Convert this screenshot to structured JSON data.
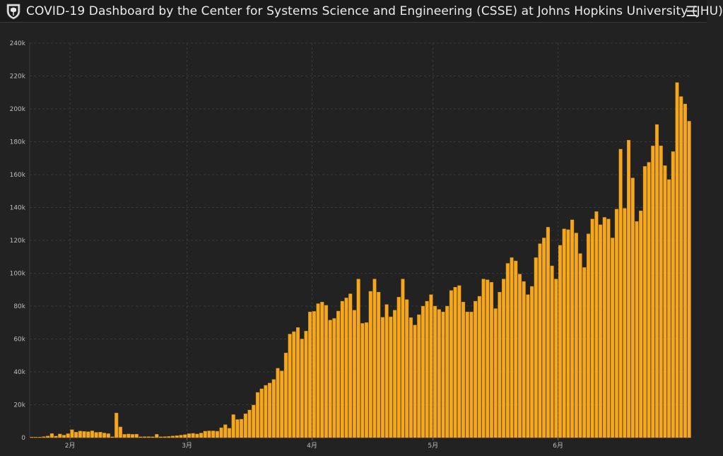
{
  "header": {
    "title": "COVID-19 Dashboard by the Center for Systems Science and Engineering (CSSE) at Johns Hopkins University (JHU)",
    "logo_icon": "jhu-shield-icon",
    "menu_icon": "hamburger-menu-icon"
  },
  "colors": {
    "bar": "#f6a81c",
    "bar_stroke": "#d08a10",
    "background": "#222222",
    "grid": "#3b3b3b",
    "axis_text": "#bdbdbd"
  },
  "chart_data": {
    "type": "bar",
    "ylim": [
      0,
      240000
    ],
    "y_ticks": [
      {
        "value": 0,
        "label": "0"
      },
      {
        "value": 20000,
        "label": "20k"
      },
      {
        "value": 40000,
        "label": "40k"
      },
      {
        "value": 60000,
        "label": "60k"
      },
      {
        "value": 80000,
        "label": "80k"
      },
      {
        "value": 100000,
        "label": "100k"
      },
      {
        "value": 120000,
        "label": "120k"
      },
      {
        "value": 140000,
        "label": "140k"
      },
      {
        "value": 160000,
        "label": "160k"
      },
      {
        "value": 180000,
        "label": "180k"
      },
      {
        "value": 200000,
        "label": "200k"
      },
      {
        "value": 220000,
        "label": "220k"
      },
      {
        "value": 240000,
        "label": "240k"
      }
    ],
    "x_ticks": [
      {
        "index": 10,
        "label": "2月"
      },
      {
        "index": 39,
        "label": "3月"
      },
      {
        "index": 70,
        "label": "4月"
      },
      {
        "index": 100,
        "label": "5月"
      },
      {
        "index": 131,
        "label": "6月"
      }
    ],
    "values": [
      100,
      300,
      300,
      600,
      1000,
      2500,
      900,
      2200,
      1500,
      2400,
      4800,
      3300,
      4000,
      3800,
      3600,
      4100,
      3200,
      3300,
      2800,
      2400,
      500,
      15000,
      6500,
      2000,
      2200,
      2000,
      2100,
      500,
      600,
      600,
      500,
      2000,
      500,
      600,
      700,
      1000,
      1200,
      1500,
      1800,
      2400,
      2600,
      2200,
      2800,
      3900,
      4100,
      4100,
      3900,
      6000,
      7900,
      5700,
      14000,
      11000,
      11200,
      14500,
      16800,
      19800,
      27500,
      29700,
      31800,
      33200,
      35400,
      42200,
      40600,
      51500,
      63000,
      64500,
      67000,
      60000,
      64800,
      76500,
      76800,
      81500,
      82500,
      80500,
      71500,
      72500,
      77000,
      83000,
      85000,
      87500,
      77500,
      96500,
      69500,
      70000,
      89000,
      96500,
      88500,
      73200,
      81000,
      73500,
      77500,
      85500,
      96500,
      84000,
      73000,
      68500,
      74800,
      80000,
      83000,
      87000,
      80000,
      78000,
      76500,
      80000,
      89500,
      91500,
      92500,
      82500,
      76500,
      76500,
      83000,
      86000,
      96500,
      96000,
      94500,
      78500,
      88500,
      96500,
      106000,
      109500,
      107500,
      99500,
      95000,
      87000,
      92000,
      109500,
      118000,
      121500,
      128000,
      104500,
      96500,
      117000,
      127000,
      126500,
      132500,
      124500,
      112000,
      103500,
      124000,
      133000,
      137500,
      129500,
      134000,
      133000,
      121500,
      139000,
      175500,
      139500,
      181000,
      158000,
      131500,
      138000,
      165000,
      167500,
      177500,
      190500,
      177500,
      165500,
      157000,
      174000,
      216000,
      207500,
      203000,
      192500
    ]
  }
}
